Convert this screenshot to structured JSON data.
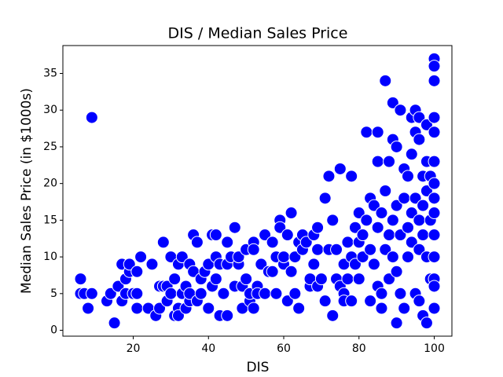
{
  "chart_data": {
    "type": "scatter",
    "title": "DIS / Median Sales Price",
    "x_label": "DIS",
    "y_label": "Median Sales Price (in $1000s)",
    "color": "#0000ff",
    "x": [
      6,
      6,
      7,
      8,
      9,
      9,
      13,
      14,
      15,
      16,
      17,
      17,
      18,
      18,
      19,
      19,
      20,
      21,
      21,
      21,
      22,
      24,
      25,
      26,
      27,
      27,
      28,
      28,
      29,
      29,
      30,
      30,
      31,
      31,
      32,
      32,
      32,
      33,
      33,
      34,
      34,
      35,
      35,
      35,
      36,
      36,
      37,
      37,
      38,
      38,
      39,
      40,
      40,
      41,
      41,
      42,
      42,
      42,
      43,
      43,
      44,
      45,
      45,
      45,
      46,
      47,
      47,
      48,
      48,
      49,
      49,
      50,
      50,
      51,
      51,
      52,
      52,
      52,
      53,
      53,
      54,
      55,
      55,
      56,
      57,
      57,
      58,
      58,
      59,
      59,
      60,
      60,
      61,
      61,
      62,
      62,
      63,
      63,
      64,
      64,
      65,
      65,
      66,
      67,
      67,
      68,
      68,
      69,
      69,
      69,
      70,
      71,
      71,
      72,
      72,
      73,
      73,
      74,
      74,
      75,
      75,
      76,
      76,
      76,
      77,
      77,
      78,
      78,
      78,
      79,
      79,
      80,
      80,
      80,
      81,
      81,
      82,
      82,
      83,
      83,
      83,
      84,
      84,
      85,
      85,
      85,
      85,
      86,
      86,
      86,
      87,
      87,
      87,
      88,
      88,
      88,
      89,
      89,
      89,
      89,
      90,
      90,
      90,
      90,
      91,
      91,
      91,
      92,
      92,
      92,
      93,
      93,
      93,
      94,
      94,
      94,
      94,
      95,
      95,
      95,
      95,
      96,
      96,
      96,
      96,
      96,
      97,
      97,
      97,
      97,
      98,
      98,
      98,
      98,
      98,
      99,
      99,
      99,
      100,
      100,
      100,
      100,
      100,
      100,
      100,
      100,
      100,
      100,
      100,
      100,
      100,
      100
    ],
    "values": [
      7,
      5,
      5,
      3,
      29,
      5,
      4,
      5,
      1,
      6,
      4,
      9,
      7,
      5,
      8,
      9,
      5,
      3,
      5,
      8,
      10,
      3,
      9,
      2,
      6,
      3,
      12,
      6,
      4,
      6,
      10,
      5,
      2,
      7,
      9,
      3,
      2,
      5,
      10,
      3,
      6,
      4,
      5,
      9,
      13,
      8,
      4,
      12,
      5,
      7,
      8,
      3,
      9,
      6,
      13,
      10,
      13,
      7,
      2,
      9,
      5,
      12,
      9,
      2,
      10,
      14,
      6,
      9,
      10,
      3,
      6,
      7,
      11,
      4,
      5,
      3,
      12,
      11,
      6,
      5,
      9,
      5,
      13,
      8,
      8,
      12,
      5,
      10,
      15,
      14,
      9,
      10,
      4,
      13,
      16,
      8,
      5,
      10,
      3,
      12,
      13,
      11,
      12,
      6,
      7,
      13,
      9,
      6,
      11,
      14,
      7,
      4,
      18,
      21,
      11,
      2,
      15,
      7,
      11,
      6,
      22,
      5,
      4,
      9,
      12,
      7,
      10,
      21,
      4,
      9,
      14,
      7,
      16,
      12,
      10,
      13,
      27,
      15,
      4,
      18,
      11,
      9,
      17,
      27,
      23,
      14,
      6,
      5,
      3,
      16,
      34,
      19,
      11,
      13,
      23,
      7,
      26,
      31,
      15,
      10,
      1,
      25,
      8,
      17,
      30,
      5,
      13,
      22,
      3,
      18,
      10,
      21,
      14,
      29,
      24,
      12,
      16,
      27,
      30,
      18,
      5,
      26,
      29,
      4,
      11,
      15,
      2,
      21,
      13,
      17,
      1,
      28,
      23,
      10,
      19,
      21,
      15,
      7,
      37,
      36,
      34,
      29,
      27,
      23,
      20,
      18,
      16,
      13,
      10,
      7,
      6,
      3
    ],
    "xlim": [
      1.3,
      104.7
    ],
    "ylim": [
      -0.8,
      38.8
    ],
    "xticks": [
      20,
      40,
      60,
      80,
      100
    ],
    "yticks": [
      0,
      5,
      10,
      15,
      20,
      25,
      30,
      35
    ]
  }
}
